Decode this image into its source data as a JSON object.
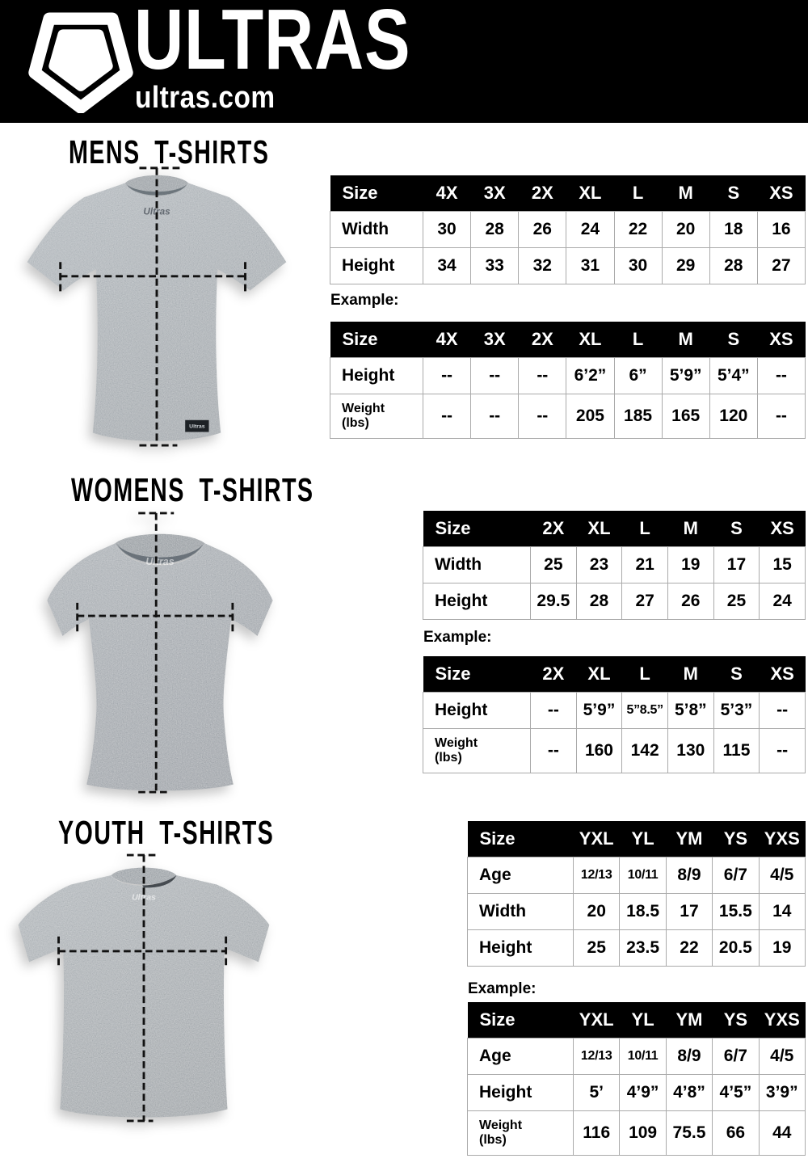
{
  "brand": {
    "name": "ULTRAS",
    "site": "ultras.com"
  },
  "colors": {
    "header_bg": "#000000",
    "table_header_bg": "#000000",
    "table_border": "#aaaaaa",
    "dash_line": "#111111",
    "shirt_gray_mens": "#8f989f",
    "shirt_gray_womens": "#878f96",
    "shirt_gray_youth": "#8d959b"
  },
  "sections": [
    {
      "title": "MENS T-SHIRTS",
      "example_label": "Example:",
      "size_table": {
        "header": [
          "Size",
          "4X",
          "3X",
          "2X",
          "XL",
          "L",
          "M",
          "S",
          "XS"
        ],
        "rows": [
          {
            "label": "Width",
            "values": [
              "30",
              "28",
              "26",
              "24",
              "22",
              "20",
              "18",
              "16"
            ]
          },
          {
            "label": "Height",
            "values": [
              "34",
              "33",
              "32",
              "31",
              "30",
              "29",
              "28",
              "27"
            ]
          }
        ]
      },
      "example_table": {
        "header": [
          "Size",
          "4X",
          "3X",
          "2X",
          "XL",
          "L",
          "M",
          "S",
          "XS"
        ],
        "rows": [
          {
            "label": "Height",
            "values": [
              "--",
              "--",
              "--",
              "6’2”",
              "6”",
              "5’9”",
              "5’4”",
              "--"
            ]
          },
          {
            "label": "Weight\n(lbs)",
            "values": [
              "--",
              "--",
              "--",
              "205",
              "185",
              "165",
              "120",
              "--"
            ]
          }
        ]
      }
    },
    {
      "title": "WOMENS T-SHIRTS",
      "example_label": "Example:",
      "size_table": {
        "header": [
          "Size",
          "2X",
          "XL",
          "L",
          "M",
          "S",
          "XS"
        ],
        "rows": [
          {
            "label": "Width",
            "values": [
              "25",
              "23",
              "21",
              "19",
              "17",
              "15"
            ]
          },
          {
            "label": "Height",
            "values": [
              "29.5",
              "28",
              "27",
              "26",
              "25",
              "24"
            ]
          }
        ]
      },
      "example_table": {
        "header": [
          "Size",
          "2X",
          "XL",
          "L",
          "M",
          "S",
          "XS"
        ],
        "rows": [
          {
            "label": "Height",
            "values": [
              "--",
              "5’9”",
              "5”8.5”",
              "5’8”",
              "5’3”",
              "--"
            ]
          },
          {
            "label": "Weight\n(lbs)",
            "values": [
              "--",
              "160",
              "142",
              "130",
              "115",
              "--"
            ]
          }
        ]
      }
    },
    {
      "title": "YOUTH T-SHIRTS",
      "example_label": "Example:",
      "size_table": {
        "header": [
          "Size",
          "YXL",
          "YL",
          "YM",
          "YS",
          "YXS"
        ],
        "rows": [
          {
            "label": "Age",
            "values": [
              "12/13",
              "10/11",
              "8/9",
              "6/7",
              "4/5"
            ]
          },
          {
            "label": "Width",
            "values": [
              "20",
              "18.5",
              "17",
              "15.5",
              "14"
            ]
          },
          {
            "label": "Height",
            "values": [
              "25",
              "23.5",
              "22",
              "20.5",
              "19"
            ]
          }
        ]
      },
      "example_table": {
        "header": [
          "Size",
          "YXL",
          "YL",
          "YM",
          "YS",
          "YXS"
        ],
        "rows": [
          {
            "label": "Age",
            "values": [
              "12/13",
              "10/11",
              "8/9",
              "6/7",
              "4/5"
            ]
          },
          {
            "label": "Height",
            "values": [
              "5’",
              "4’9”",
              "4’8”",
              "4’5”",
              "3’9”"
            ]
          },
          {
            "label": "Weight\n(lbs)",
            "values": [
              "116",
              "109",
              "75.5",
              "66",
              "44"
            ]
          }
        ]
      }
    }
  ]
}
